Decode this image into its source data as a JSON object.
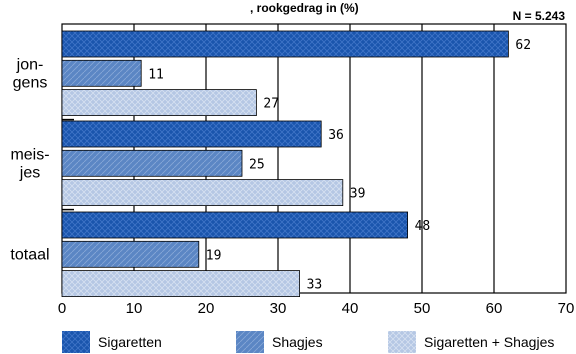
{
  "chart_data": {
    "type": "bar",
    "orientation": "horizontal",
    "title": ", rookgedrag in (%)",
    "n_label": "N = 5.243",
    "categories": [
      {
        "label_lines": [
          "jon-",
          "gens"
        ]
      },
      {
        "label_lines": [
          "meis-",
          "jes"
        ]
      },
      {
        "label_lines": [
          "totaal"
        ]
      }
    ],
    "series": [
      {
        "name": "Sigaretten",
        "values": [
          62,
          36,
          48
        ],
        "color": "#1a55ad"
      },
      {
        "name": "Shagjes",
        "values": [
          11,
          25,
          19
        ],
        "color": "#5b86c4"
      },
      {
        "name": "Sigaretten + Shagjes",
        "values": [
          27,
          39,
          33
        ],
        "color": "#b5c7e4"
      }
    ],
    "xlim": [
      0,
      70
    ],
    "xticks": [
      "0",
      "10",
      "20",
      "30",
      "40",
      "50",
      "60",
      "70"
    ],
    "grid": true,
    "legend_position": "bottom"
  }
}
